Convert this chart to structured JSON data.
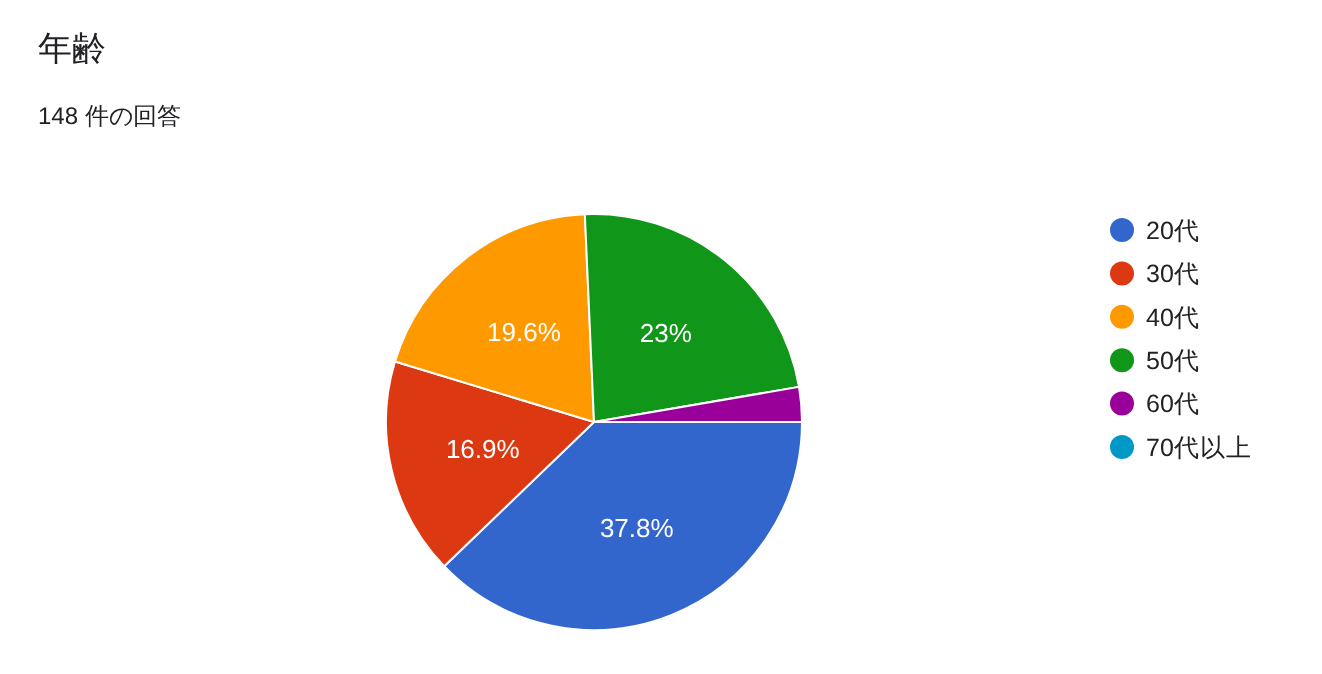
{
  "chart_data": {
    "type": "pie",
    "title": "年齢",
    "subtitle": "148 件の回答",
    "categories": [
      "20代",
      "30代",
      "40代",
      "50代",
      "60代",
      "70代以上"
    ],
    "values": [
      37.8,
      16.9,
      19.6,
      23,
      2.7,
      0
    ],
    "colors": [
      "#3366cc",
      "#dc3912",
      "#ff9900",
      "#109618",
      "#990099",
      "#0099c6"
    ],
    "value_labels": [
      "37.8%",
      "16.9%",
      "19.6%",
      "23%",
      null,
      null
    ],
    "legend": "right"
  }
}
